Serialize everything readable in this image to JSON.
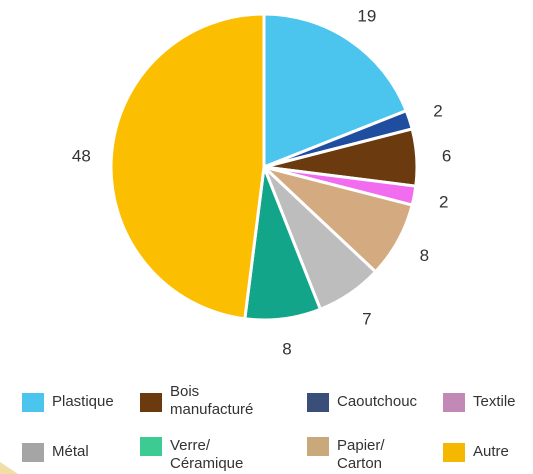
{
  "chart_data": {
    "type": "pie",
    "categories": [
      "Plastique",
      "Caoutchouc",
      "Bois manufacturé",
      "Textile",
      "Papier/ Carton",
      "Métal",
      "Verre/ Céramique",
      "Autre"
    ],
    "values": [
      19,
      2,
      6,
      2,
      8,
      7,
      8,
      48
    ],
    "colors": [
      "#4bc4ee",
      "#1f4ea0",
      "#6b3a0e",
      "#f26cf0",
      "#d4aa80",
      "#bdbdbd",
      "#12a58a",
      "#fbbe00"
    ],
    "data_labels": [
      "19",
      "2",
      "6",
      "2",
      "8",
      "7",
      "8",
      "48"
    ],
    "start_angle_deg": 0,
    "direction": "clockwise"
  },
  "legend": {
    "items": [
      {
        "label_lines": [
          "Plastique"
        ],
        "color": "#4bc4ee"
      },
      {
        "label_lines": [
          "Bois",
          "manufacturé"
        ],
        "color": "#6b3a0e"
      },
      {
        "label_lines": [
          "Caoutchouc"
        ],
        "color": "#3a4e7a"
      },
      {
        "label_lines": [
          "Textile"
        ],
        "color": "#c389b6"
      },
      {
        "label_lines": [
          "Métal"
        ],
        "color": "#a5a5a5"
      },
      {
        "label_lines": [
          "Verre/",
          "Céramique"
        ],
        "color": "#3ccb92"
      },
      {
        "label_lines": [
          "Papier/",
          "Carton"
        ],
        "color": "#c9a97c"
      },
      {
        "label_lines": [
          "Autre"
        ],
        "color": "#f5b800"
      }
    ]
  }
}
